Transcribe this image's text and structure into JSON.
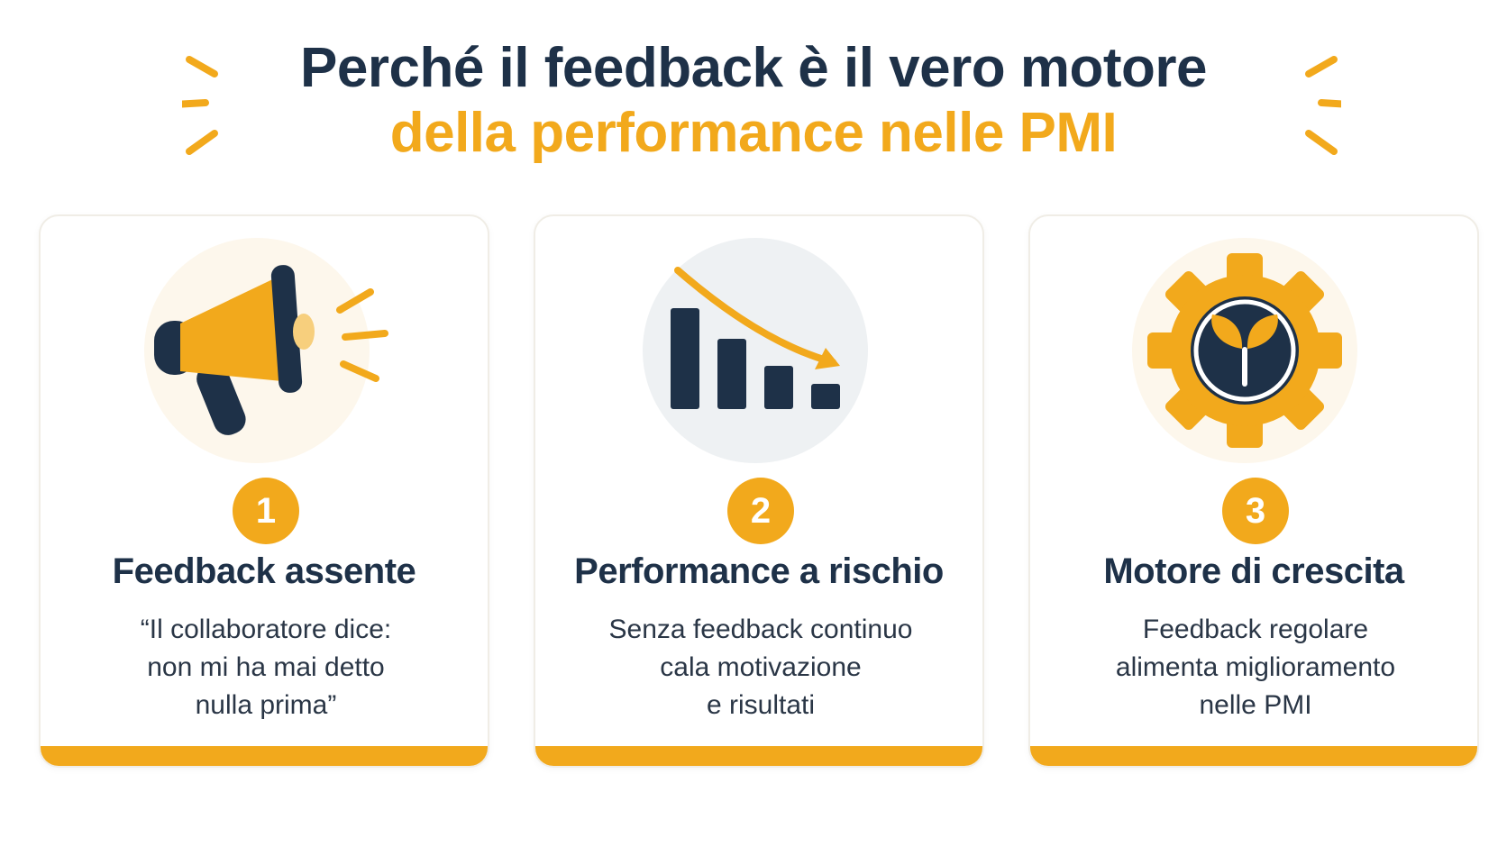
{
  "header": {
    "title_line1": "Perché il feedback è il vero motore",
    "title_line2": "della performance nelle PMI"
  },
  "colors": {
    "navy": "#1e3148",
    "accent": "#f2a91c",
    "text": "#2a3646"
  },
  "cards": [
    {
      "number": "1",
      "icon": "megaphone-icon",
      "title": "Feedback assente",
      "lines": [
        "“Il collaboratore dice:",
        "non mi ha mai detto",
        "nulla prima”"
      ]
    },
    {
      "number": "2",
      "icon": "declining-bar-chart-icon",
      "title": "Performance a rischio",
      "lines": [
        "Senza feedback continuo",
        "cala motivazione",
        "e risultati"
      ]
    },
    {
      "number": "3",
      "icon": "gear-sprout-icon",
      "title": "Motore di crescita",
      "lines": [
        "Feedback regolare",
        "alimenta miglioramento",
        "nelle PMI"
      ]
    }
  ]
}
